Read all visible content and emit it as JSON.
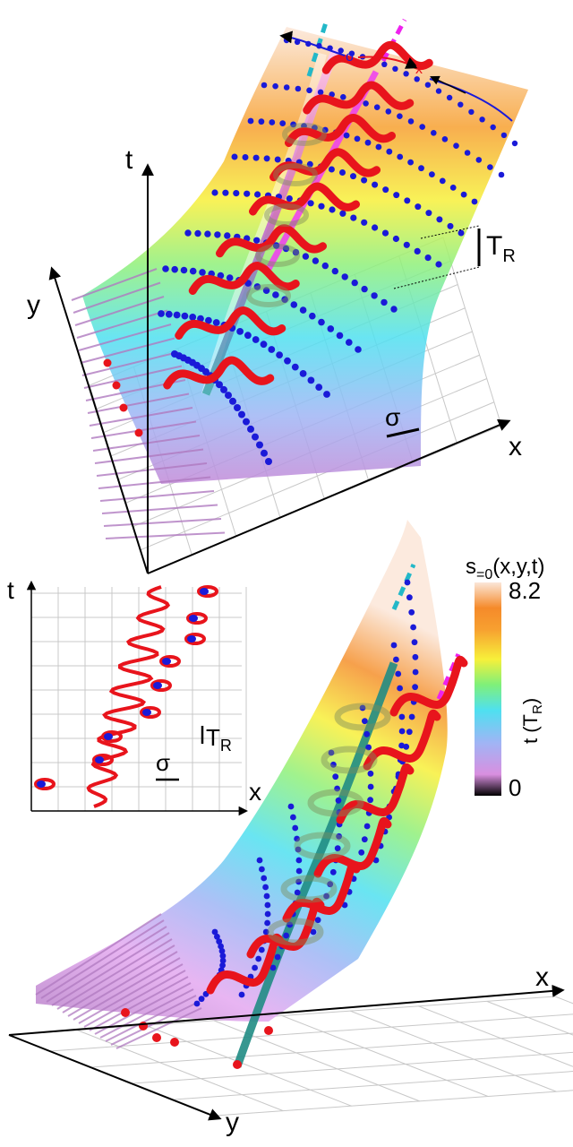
{
  "top_panel": {
    "axis_t": "t",
    "axis_y": "y",
    "axis_x": "x",
    "marker_o": "o",
    "marker_x": "x",
    "scale_T": "T",
    "scale_R": "R",
    "scale_sigma": "σ"
  },
  "inset": {
    "axis_t": "t",
    "axis_x": "x",
    "scale_T": "T",
    "scale_R": "R",
    "scale_sigma": "σ"
  },
  "bottom_panel": {
    "axis_x": "x",
    "axis_y": "y"
  },
  "colorbar": {
    "title": "s=0(x,y,t)",
    "max_label": "8.2",
    "min_label": "0",
    "axis_label": "t (T",
    "axis_label_sub": "R",
    "axis_label_close": ")",
    "range": [
      0,
      8.2
    ],
    "colors": [
      "#000000",
      "#d98fe0",
      "#9fb5f5",
      "#4fe0f0",
      "#7ff07a",
      "#f7f03a",
      "#f7a030",
      "#f58a2a",
      "#fbe6d8"
    ]
  },
  "colors": {
    "red_marker": "#e8141c",
    "blue_marker": "#1a1ad8",
    "cyan_dash": "#22b8c8",
    "magenta_dash": "#ee22ee"
  }
}
